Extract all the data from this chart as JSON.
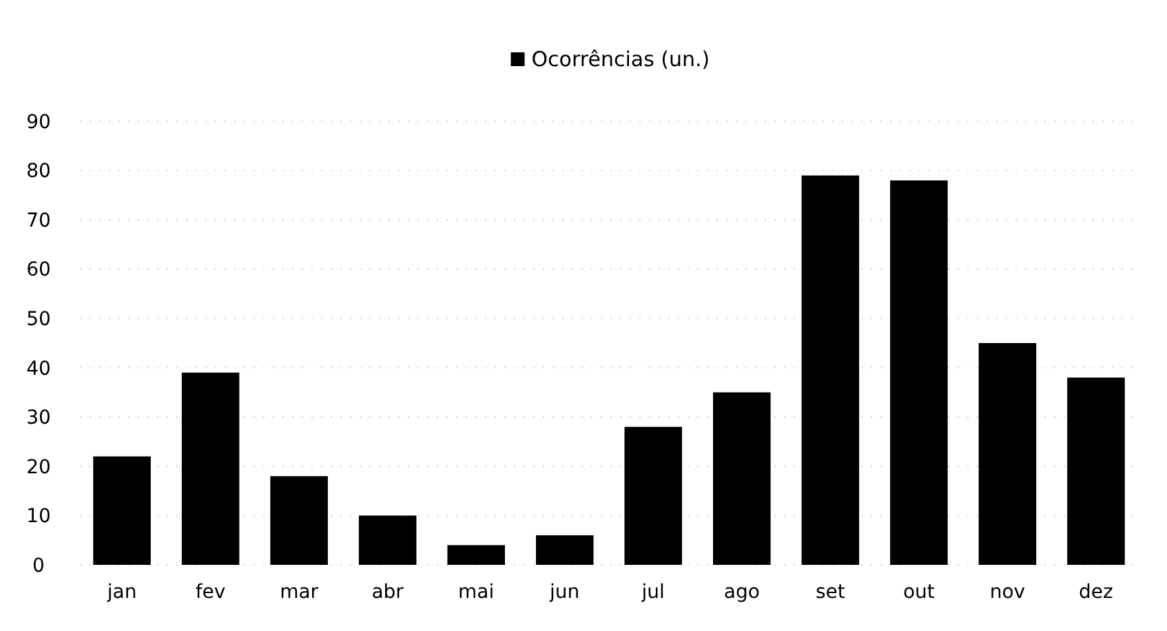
{
  "chart_data": {
    "type": "bar",
    "categories": [
      "jan",
      "fev",
      "mar",
      "abr",
      "mai",
      "jun",
      "jul",
      "ago",
      "set",
      "out",
      "nov",
      "dez"
    ],
    "series": [
      {
        "name": "Ocorrências (un.)",
        "color": "#000000",
        "values": [
          22,
          39,
          18,
          10,
          4,
          6,
          28,
          35,
          79,
          78,
          45,
          38
        ]
      }
    ],
    "ylim": [
      0,
      90
    ],
    "yticks": [
      0,
      10,
      20,
      30,
      40,
      50,
      60,
      70,
      80,
      90
    ],
    "grid": "y",
    "legend": "top"
  }
}
